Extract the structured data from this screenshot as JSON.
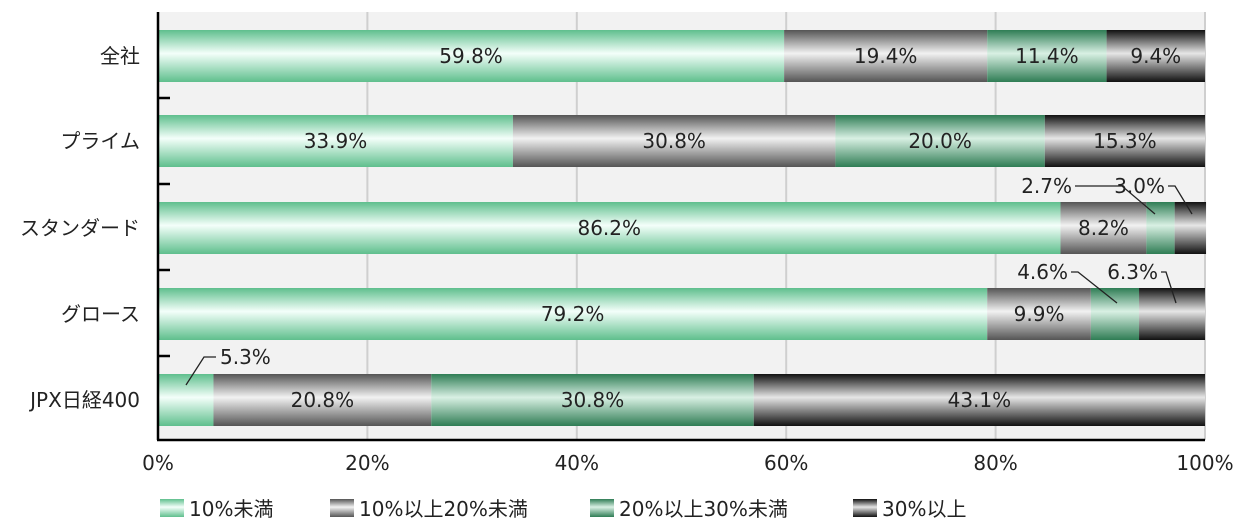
{
  "chart_data": {
    "type": "bar",
    "orientation": "horizontal",
    "stacked": "100%",
    "categories": [
      "全社",
      "プライム",
      "スタンダード",
      "グロース",
      "JPX日経400"
    ],
    "series": [
      {
        "name": "10%未満",
        "values": [
          59.8,
          33.9,
          86.2,
          79.2,
          5.3
        ],
        "color": "#8fd4b0"
      },
      {
        "name": "10%以上20%未満",
        "values": [
          19.4,
          30.8,
          8.2,
          9.9,
          20.8
        ],
        "color": "#9a9a9a"
      },
      {
        "name": "20%以上30%未満",
        "values": [
          11.4,
          20.0,
          2.7,
          4.6,
          30.8
        ],
        "color": "#4f9e72"
      },
      {
        "name": "30%以上",
        "values": [
          9.4,
          15.3,
          3.0,
          6.3,
          43.1
        ],
        "color": "#2a2a2a"
      }
    ],
    "labels": [
      [
        "59.8%",
        "19.4%",
        "11.4%",
        "9.4%"
      ],
      [
        "33.9%",
        "30.8%",
        "20.0%",
        "15.3%"
      ],
      [
        "86.2%",
        "8.2%",
        "2.7%",
        "3.0%"
      ],
      [
        "79.2%",
        "9.9%",
        "4.6%",
        "6.3%"
      ],
      [
        "5.3%",
        "20.8%",
        "30.8%",
        "43.1%"
      ]
    ],
    "xlim": [
      0,
      100
    ],
    "x_ticks": [
      "0%",
      "20%",
      "40%",
      "60%",
      "80%",
      "100%"
    ],
    "grid": true,
    "legend_position": "bottom",
    "title": "",
    "xlabel": "",
    "ylabel": ""
  }
}
